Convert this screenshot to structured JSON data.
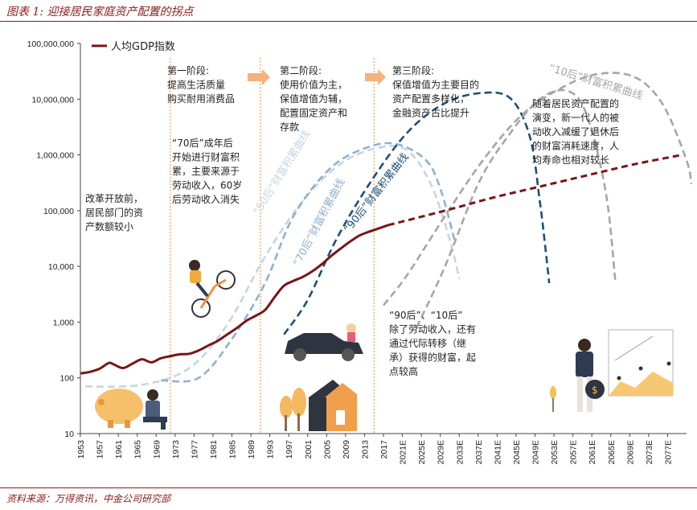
{
  "header": {
    "title": "图表 1: 迎接居民家庭资产配置的拐点"
  },
  "footer": {
    "source": "资料来源：万得资讯，中金公司研究部"
  },
  "chart_data": {
    "type": "line",
    "title": "",
    "xlabel": "",
    "ylabel": "",
    "y_scale": "log",
    "ylim": [
      10,
      100000000
    ],
    "y_ticks": [
      {
        "value": 10,
        "label": "10"
      },
      {
        "value": 100,
        "label": "100"
      },
      {
        "value": 1000,
        "label": "1,000"
      },
      {
        "value": 10000,
        "label": "10,000"
      },
      {
        "value": 100000,
        "label": "100,000"
      },
      {
        "value": 1000000,
        "label": "1,000,000"
      },
      {
        "value": 10000000,
        "label": "10,000,000"
      },
      {
        "value": 100000000,
        "label": "100,000,000"
      }
    ],
    "x_ticks": [
      "1953",
      "1957",
      "1961",
      "1965",
      "1969",
      "1973",
      "1977",
      "1981",
      "1985",
      "1989",
      "1993",
      "1997",
      "2001",
      "2005",
      "2009",
      "2013",
      "2017",
      "2021E",
      "2025E",
      "2029E",
      "2033E",
      "2037E",
      "2041E",
      "2045E",
      "2049E",
      "2053E",
      "2057E",
      "2061E",
      "2065E",
      "2069E",
      "2073E",
      "2077E"
    ],
    "xlim": [
      1953,
      2081
    ],
    "legend": {
      "position": "top-left",
      "entries": [
        "人均GDP指数"
      ]
    },
    "series": [
      {
        "name": "人均GDP指数",
        "color": "#7a1515",
        "actual": [
          [
            1953,
            120
          ],
          [
            1955,
            128
          ],
          [
            1957,
            145
          ],
          [
            1959,
            185
          ],
          [
            1960,
            175
          ],
          [
            1962,
            150
          ],
          [
            1964,
            180
          ],
          [
            1966,
            215
          ],
          [
            1968,
            190
          ],
          [
            1970,
            225
          ],
          [
            1972,
            245
          ],
          [
            1974,
            265
          ],
          [
            1976,
            270
          ],
          [
            1978,
            310
          ],
          [
            1980,
            380
          ],
          [
            1982,
            460
          ],
          [
            1984,
            600
          ],
          [
            1986,
            780
          ],
          [
            1988,
            1050
          ],
          [
            1990,
            1300
          ],
          [
            1992,
            1650
          ],
          [
            1994,
            2800
          ],
          [
            1996,
            4500
          ],
          [
            1998,
            5500
          ],
          [
            2000,
            6500
          ],
          [
            2002,
            8200
          ],
          [
            2004,
            11000
          ],
          [
            2006,
            15500
          ],
          [
            2008,
            21000
          ],
          [
            2010,
            28000
          ],
          [
            2012,
            36000
          ],
          [
            2014,
            42000
          ],
          [
            2016,
            48000
          ],
          [
            2018,
            55000
          ]
        ],
        "forecast": [
          [
            2018,
            55000
          ],
          [
            2030,
            100000
          ],
          [
            2040,
            170000
          ],
          [
            2050,
            270000
          ],
          [
            2060,
            430000
          ],
          [
            2070,
            680000
          ],
          [
            2080,
            1000000
          ]
        ]
      }
    ],
    "wealth_curves": [
      {
        "label": "“50后”财富积累曲线",
        "color": "#c3d5e6",
        "points": [
          [
            1954,
            70
          ],
          [
            1966,
            75
          ],
          [
            1976,
            150
          ],
          [
            1984,
            900
          ],
          [
            1992,
            15000
          ],
          [
            2000,
            150000
          ],
          [
            2008,
            700000
          ],
          [
            2016,
            1350000
          ],
          [
            2022,
            1200000
          ],
          [
            2027,
            300000
          ],
          [
            2031,
            30000
          ],
          [
            2033,
            6000
          ]
        ]
      },
      {
        "label": "“70后”财富积累曲线",
        "color": "#8fb1d1",
        "points": [
          [
            1970,
            90
          ],
          [
            1978,
            100
          ],
          [
            1985,
            500
          ],
          [
            1992,
            5000
          ],
          [
            1998,
            80000
          ],
          [
            2006,
            600000
          ],
          [
            2014,
            1400000
          ],
          [
            2020,
            1550000
          ],
          [
            2026,
            800000
          ],
          [
            2029,
            250000
          ],
          [
            2032,
            30000
          ]
        ]
      },
      {
        "label": "“90后”财富积累曲线",
        "color": "#1f4e79",
        "points": [
          [
            1996,
            600
          ],
          [
            2001,
            2500
          ],
          [
            2007,
            30000
          ],
          [
            2014,
            300000
          ],
          [
            2022,
            2500000
          ],
          [
            2030,
            8500000
          ],
          [
            2038,
            13000000
          ],
          [
            2044,
            10000000
          ],
          [
            2048,
            2000000
          ],
          [
            2050,
            150000
          ],
          [
            2051,
            30000
          ],
          [
            2052,
            5000
          ]
        ]
      },
      {
        "label": "“10后”财富积累曲线",
        "color": "#a6a6a6",
        "points": [
          [
            2017,
            2000
          ],
          [
            2022,
            7000
          ],
          [
            2030,
            80000
          ],
          [
            2038,
            800000
          ],
          [
            2046,
            5000000
          ],
          [
            2054,
            15000000
          ],
          [
            2062,
            28000000
          ],
          [
            2070,
            25000000
          ],
          [
            2076,
            8000000
          ],
          [
            2081,
            800000
          ],
          [
            2082,
            300000
          ]
        ]
      },
      {
        "label": "",
        "color": "#a6a6a6",
        "points": [
          [
            2024,
            800
          ],
          [
            2030,
            10000
          ],
          [
            2037,
            300000
          ],
          [
            2043,
            2000000
          ],
          [
            2050,
            10000000
          ],
          [
            2056,
            14000000
          ],
          [
            2060,
            5000000
          ],
          [
            2064,
            200000
          ],
          [
            2066,
            5000
          ]
        ]
      }
    ],
    "stage_dividers": [
      1972,
      1991,
      2015
    ],
    "annotations": {
      "reform": "改革开放前，\n居民部门的资\n产数额较小",
      "stage1": "第一阶段:\n提高生活质量\n购买耐用消费品",
      "stage2": "第二阶段:\n使用价值为主，\n保值增值为辅，\n配置固定资产和\n存款",
      "stage3": "第三阶段:\n保值增值为主要目的\n资产配置多样化，\n金融资产占比提升",
      "gen70": "“70后”成年后\n开始进行财富积\n累，主要来源于\n劳动收入，60岁\n后劳动收入消失",
      "gen90_10": "“90后”、“10后”\n除了劳动收入，还有\n通过代际转移（继\n承）获得的财富，起\n点较高",
      "newgen": "随着居民资产配置的\n演变，新一代人的被\n动收入减缓了退休后\n的财富消耗速度，人\n均寿命也相对较长"
    }
  }
}
